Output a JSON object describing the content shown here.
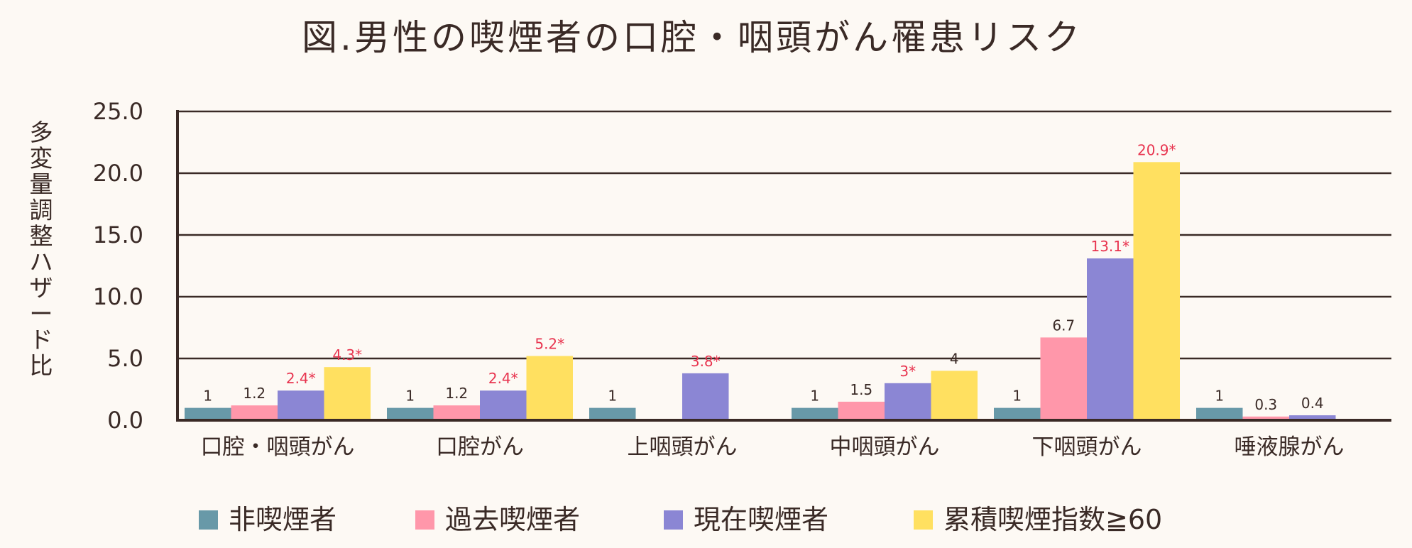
{
  "chart_data": {
    "type": "bar",
    "title": "図.男性の喫煙者の口腔・咽頭がん罹患リスク",
    "ylabel": "多変量調整ハザード比",
    "xlabel": "",
    "ylim": [
      0,
      25
    ],
    "yticks": [
      "0.0",
      "5.0",
      "10.0",
      "15.0",
      "20.0",
      "25.0"
    ],
    "grid": true,
    "legend_position": "bottom",
    "categories": [
      "口腔・咽頭がん",
      "口腔がん",
      "上咽頭がん",
      "中咽頭がん",
      "下咽頭がん",
      "唾液腺がん"
    ],
    "series": [
      {
        "name": "非喫煙者",
        "color": "#6899a8",
        "values": [
          1,
          1,
          1,
          1,
          1,
          1
        ],
        "labels": [
          "1",
          "1",
          "1",
          "1",
          "1",
          "1"
        ],
        "significant": [
          false,
          false,
          false,
          false,
          false,
          false
        ]
      },
      {
        "name": "過去喫煙者",
        "color": "#ff97aa",
        "values": [
          1.2,
          1.2,
          null,
          1.5,
          6.7,
          0.3
        ],
        "labels": [
          "1.2",
          "1.2",
          "",
          "1.5",
          "6.7",
          "0.3"
        ],
        "significant": [
          false,
          false,
          false,
          false,
          false,
          false
        ]
      },
      {
        "name": "現在喫煙者",
        "color": "#8b86d4",
        "values": [
          2.4,
          2.4,
          3.8,
          3,
          13.1,
          0.4
        ],
        "labels": [
          "2.4*",
          "2.4*",
          "3.8*",
          "3*",
          "13.1*",
          "0.4"
        ],
        "significant": [
          true,
          true,
          true,
          true,
          true,
          false
        ]
      },
      {
        "name": "累積喫煙指数≧60",
        "color": "#ffe060",
        "values": [
          4.3,
          5.2,
          null,
          4,
          20.9,
          null
        ],
        "labels": [
          "4.3*",
          "5.2*",
          "",
          "4",
          "20.9*",
          ""
        ],
        "significant": [
          true,
          true,
          false,
          false,
          true,
          false
        ]
      }
    ],
    "colors": {
      "significant_label": "#e8344f",
      "normal_label": "#3a2a26",
      "axis": "#3a2a26",
      "grid": "#3a2a26",
      "background": "#fdf9f4"
    }
  }
}
